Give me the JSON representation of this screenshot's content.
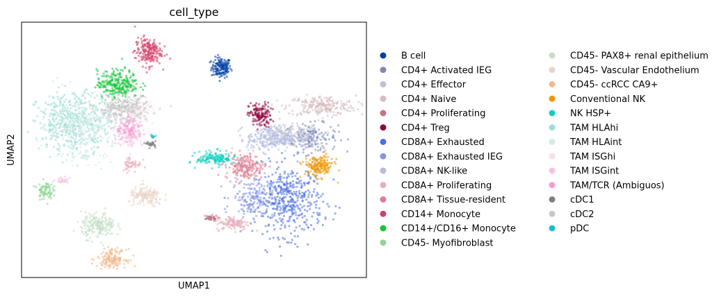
{
  "chart_data": {
    "type": "scatter",
    "title": "cell_type",
    "xlabel": "UMAP1",
    "ylabel": "UMAP2",
    "ticks": "none",
    "grid": false,
    "legend_position": "right",
    "legend_columns": 2,
    "xlim": [
      0,
      100
    ],
    "ylim": [
      0,
      100
    ],
    "series": [
      {
        "name": "B cell",
        "color": "#023fa5",
        "clusters": [
          {
            "cx": 57.9,
            "cy": 82.2,
            "rx": 2.6,
            "ry": 3.6,
            "n": 150
          }
        ]
      },
      {
        "name": "CD4+ Activated IEG",
        "color": "#7d87b9",
        "clusters": [
          {
            "cx": 84.0,
            "cy": 54.8,
            "rx": 7.0,
            "ry": 5.0,
            "n": 160
          }
        ]
      },
      {
        "name": "CD4+ Effector",
        "color": "#bec1d4",
        "clusters": [
          {
            "cx": 77.0,
            "cy": 55.3,
            "rx": 9.0,
            "ry": 3.8,
            "n": 200
          }
        ]
      },
      {
        "name": "CD4+ Naive",
        "color": "#d6bcc0",
        "clusters": [
          {
            "cx": 87.0,
            "cy": 67.2,
            "rx": 9.0,
            "ry": 3.6,
            "n": 220
          }
        ]
      },
      {
        "name": "CD4+ Proliferating",
        "color": "#bb7784",
        "clusters": [
          {
            "cx": 54.5,
            "cy": 23.2,
            "rx": 2.2,
            "ry": 1.0,
            "n": 40
          }
        ]
      },
      {
        "name": "CD4+ Treg",
        "color": "#8e063b",
        "clusters": [
          {
            "cx": 69.2,
            "cy": 63.5,
            "rx": 3.0,
            "ry": 4.5,
            "n": 140
          }
        ]
      },
      {
        "name": "CD8A+ Exhausted",
        "color": "#4a6fe3",
        "clusters": [
          {
            "cx": 77.5,
            "cy": 30.1,
            "rx": 9.0,
            "ry": 12.5,
            "n": 450
          }
        ]
      },
      {
        "name": "CD8A+ Exhausted IEG",
        "color": "#8595e1",
        "clusters": [
          {
            "cx": 67.0,
            "cy": 31.1,
            "rx": 5.5,
            "ry": 6.5,
            "n": 160
          }
        ]
      },
      {
        "name": "CD8A+ NK-like",
        "color": "#b5bbe3",
        "clusters": [
          {
            "cx": 72.0,
            "cy": 54.3,
            "rx": 6.0,
            "ry": 4.5,
            "n": 180
          }
        ]
      },
      {
        "name": "CD8A+ Proliferating",
        "color": "#e6afb9",
        "clusters": [
          {
            "cx": 61.3,
            "cy": 21.3,
            "rx": 4.5,
            "ry": 2.5,
            "n": 120
          },
          {
            "cx": 32.0,
            "cy": 44.5,
            "rx": 2.5,
            "ry": 3.0,
            "n": 50
          }
        ]
      },
      {
        "name": "CD8A+ Tissue-resident",
        "color": "#e07b91",
        "clusters": [
          {
            "cx": 64.7,
            "cy": 43.5,
            "rx": 5.0,
            "ry": 4.5,
            "n": 200
          }
        ]
      },
      {
        "name": "CD14+ Monocyte",
        "color": "#d33f6a",
        "clusters": [
          {
            "cx": 36.7,
            "cy": 88.5,
            "rx": 3.5,
            "ry": 5.0,
            "n": 200
          }
        ]
      },
      {
        "name": "CD14+/CD16+ Monocyte",
        "color": "#11c638",
        "clusters": [
          {
            "cx": 28.0,
            "cy": 75.8,
            "rx": 5.5,
            "ry": 5.0,
            "n": 250
          }
        ]
      },
      {
        "name": "CD45- Myofibroblast",
        "color": "#8dd593",
        "clusters": [
          {
            "cx": 6.8,
            "cy": 34.2,
            "rx": 2.0,
            "ry": 3.2,
            "n": 80
          }
        ]
      },
      {
        "name": "CD45- PAX8+ renal epithelium",
        "color": "#c6dec7",
        "clusters": [
          {
            "cx": 22.2,
            "cy": 20.4,
            "rx": 4.5,
            "ry": 4.5,
            "n": 200
          }
        ]
      },
      {
        "name": "CD45- Vascular Endothelium",
        "color": "#ead3c6",
        "clusters": [
          {
            "cx": 36.2,
            "cy": 31.6,
            "rx": 4.5,
            "ry": 3.5,
            "n": 150
          }
        ]
      },
      {
        "name": "CD45- ccRCC CA9+",
        "color": "#f0b98d",
        "clusters": [
          {
            "cx": 26.2,
            "cy": 7.5,
            "rx": 3.8,
            "ry": 3.2,
            "n": 150
          }
        ]
      },
      {
        "name": "Conventional NK",
        "color": "#ef9708",
        "clusters": [
          {
            "cx": 86.1,
            "cy": 43.5,
            "rx": 4.0,
            "ry": 3.8,
            "n": 180
          }
        ]
      },
      {
        "name": "NK HSP+",
        "color": "#0fcfc0",
        "clusters": [
          {
            "cx": 56.4,
            "cy": 46.6,
            "rx": 5.0,
            "ry": 2.5,
            "n": 150
          }
        ]
      },
      {
        "name": "TAM HLAhi",
        "color": "#9cded6",
        "clusters": [
          {
            "cx": 15.2,
            "cy": 60.8,
            "rx": 9.5,
            "ry": 10.5,
            "n": 500
          }
        ]
      },
      {
        "name": "TAM HLAint",
        "color": "#d5eae7",
        "clusters": [
          {
            "cx": 17.2,
            "cy": 58.9,
            "rx": 10.0,
            "ry": 11.5,
            "n": 300
          }
        ]
      },
      {
        "name": "TAM ISGhi",
        "color": "#f3e1eb",
        "clusters": [
          {
            "cx": 33.3,
            "cy": 64.9,
            "rx": 4.5,
            "ry": 4.0,
            "n": 120
          }
        ]
      },
      {
        "name": "TAM ISGint",
        "color": "#f6c4e1",
        "clusters": [
          {
            "cx": 31.3,
            "cy": 55.8,
            "rx": 3.5,
            "ry": 4.0,
            "n": 100
          },
          {
            "cx": 12.1,
            "cy": 38.0,
            "rx": 2.5,
            "ry": 1.0,
            "n": 30
          }
        ]
      },
      {
        "name": "TAM/TCR (Ambiguos)",
        "color": "#f79cd4",
        "clusters": [
          {
            "cx": 31.3,
            "cy": 58.3,
            "rx": 3.5,
            "ry": 4.0,
            "n": 100
          }
        ]
      },
      {
        "name": "cDC1",
        "color": "#7f7f7f",
        "clusters": [
          {
            "cx": 37.6,
            "cy": 52.2,
            "rx": 1.2,
            "ry": 1.0,
            "n": 30
          }
        ]
      },
      {
        "name": "cDC2",
        "color": "#c7c7c7",
        "clusters": [
          {
            "cx": 29.6,
            "cy": 66.3,
            "rx": 7.0,
            "ry": 4.5,
            "n": 250
          }
        ]
      },
      {
        "name": "pDC",
        "color": "#17becf",
        "clusters": [
          {
            "cx": 38.0,
            "cy": 55.4,
            "rx": 0.8,
            "ry": 0.6,
            "n": 10
          }
        ]
      }
    ]
  }
}
